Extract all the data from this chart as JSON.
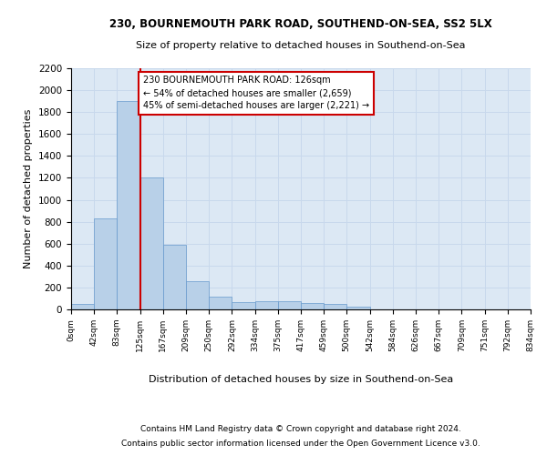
{
  "title1": "230, BOURNEMOUTH PARK ROAD, SOUTHEND-ON-SEA, SS2 5LX",
  "title2": "Size of property relative to detached houses in Southend-on-Sea",
  "xlabel": "Distribution of detached houses by size in Southend-on-Sea",
  "ylabel": "Number of detached properties",
  "footnote1": "Contains HM Land Registry data © Crown copyright and database right 2024.",
  "footnote2": "Contains public sector information licensed under the Open Government Licence v3.0.",
  "property_size": 126,
  "annotation_line1": "230 BOURNEMOUTH PARK ROAD: 126sqm",
  "annotation_line2": "← 54% of detached houses are smaller (2,659)",
  "annotation_line3": "45% of semi-detached houses are larger (2,221) →",
  "bin_edges": [
    0,
    42,
    83,
    125,
    167,
    209,
    250,
    292,
    334,
    375,
    417,
    459,
    500,
    542,
    584,
    626,
    667,
    709,
    751,
    792,
    834
  ],
  "bin_counts": [
    50,
    830,
    1900,
    1200,
    590,
    260,
    120,
    70,
    75,
    75,
    60,
    50,
    25,
    0,
    0,
    0,
    0,
    0,
    0,
    0
  ],
  "bar_color": "#b8d0e8",
  "bar_edge_color": "#6699cc",
  "grid_color": "#c8d8ec",
  "background_color": "#dce8f4",
  "vline_color": "#cc0000",
  "annotation_box_color": "#cc0000",
  "ylim": [
    0,
    2200
  ],
  "yticks": [
    0,
    200,
    400,
    600,
    800,
    1000,
    1200,
    1400,
    1600,
    1800,
    2000,
    2200
  ]
}
